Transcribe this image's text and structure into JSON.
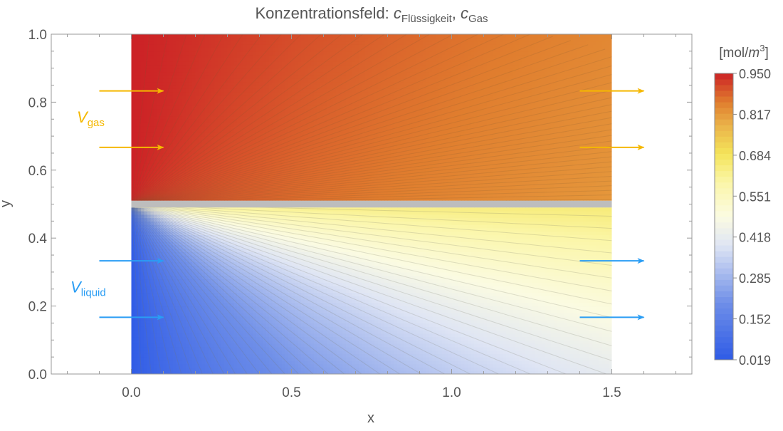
{
  "chart_data": {
    "type": "contour",
    "title": {
      "prefix": "Konzentrationsfeld: ",
      "var1": "c",
      "sub1": "Flüssigkeit",
      "sep": ", ",
      "var2": "c",
      "sub2": "Gas"
    },
    "xlabel": "x",
    "ylabel": "y",
    "xlim": [
      -0.25,
      1.75
    ],
    "ylim": [
      0.0,
      1.0
    ],
    "x_ticks": [
      0.0,
      0.5,
      1.0,
      1.5
    ],
    "x_tick_labels": [
      "0.0",
      "0.5",
      "1.0",
      "1.5"
    ],
    "y_ticks": [
      0.0,
      0.2,
      0.4,
      0.6,
      0.8,
      1.0
    ],
    "y_tick_labels": [
      "0.0",
      "0.2",
      "0.4",
      "0.6",
      "0.8",
      "1.0"
    ],
    "domain": {
      "x": [
        0.0,
        1.5
      ],
      "y": [
        0.0,
        1.0
      ]
    },
    "interface": {
      "y": 0.5,
      "color": "#bdbdbd"
    },
    "regions": [
      {
        "name": "gas",
        "y": [
          0.51,
          1.0
        ],
        "inlet_value": 0.95,
        "bulk_value": 0.82
      },
      {
        "name": "liquid",
        "y": [
          0.0,
          0.49
        ],
        "inlet_value": 0.02,
        "bulk_value": 0.62
      }
    ],
    "colorbar": {
      "unit_prefix": "[mol/",
      "unit_var": "m",
      "unit_exp": "3",
      "unit_suffix": "]",
      "min": 0.019,
      "max": 0.95,
      "ticks": [
        0.019,
        0.152,
        0.285,
        0.418,
        0.551,
        0.684,
        0.817,
        0.95
      ],
      "tick_labels": [
        "0.019",
        "0.152",
        "0.285",
        "0.418",
        "0.551",
        "0.684",
        "0.817",
        "0.950"
      ],
      "color_stops": [
        {
          "v": 0.0,
          "color": "#2f5be6"
        },
        {
          "v": 0.2,
          "color": "#6f8fe8"
        },
        {
          "v": 0.4,
          "color": "#dfe5f4"
        },
        {
          "v": 0.5,
          "color": "#fbfbe2"
        },
        {
          "v": 0.62,
          "color": "#fbf6a8"
        },
        {
          "v": 0.72,
          "color": "#f4e45a"
        },
        {
          "v": 0.82,
          "color": "#eab249"
        },
        {
          "v": 0.9,
          "color": "#e07d2e"
        },
        {
          "v": 1.0,
          "color": "#cc2226"
        }
      ]
    },
    "arrows": [
      {
        "group": "gas",
        "x0": -0.1,
        "x1": 0.1,
        "y": 0.833
      },
      {
        "group": "gas",
        "x0": -0.1,
        "x1": 0.1,
        "y": 0.667
      },
      {
        "group": "gas",
        "x0": 1.4,
        "x1": 1.6,
        "y": 0.833
      },
      {
        "group": "gas",
        "x0": 1.4,
        "x1": 1.6,
        "y": 0.667
      },
      {
        "group": "liquid",
        "x0": -0.1,
        "x1": 0.1,
        "y": 0.333
      },
      {
        "group": "liquid",
        "x0": -0.1,
        "x1": 0.1,
        "y": 0.167
      },
      {
        "group": "liquid",
        "x0": 1.4,
        "x1": 1.6,
        "y": 0.333
      },
      {
        "group": "liquid",
        "x0": 1.4,
        "x1": 1.6,
        "y": 0.167
      }
    ],
    "annotations": [
      {
        "group": "gas",
        "symbol": "V",
        "subscript": "gas",
        "x": -0.17,
        "y": 0.74,
        "color": "#f5b800"
      },
      {
        "group": "liquid",
        "symbol": "V",
        "subscript": "liquid",
        "x": -0.19,
        "y": 0.24,
        "color": "#2a9df4"
      }
    ],
    "colors": {
      "gas_arrow": "#f5b800",
      "liquid_arrow": "#2a9df4"
    },
    "grid": false
  }
}
